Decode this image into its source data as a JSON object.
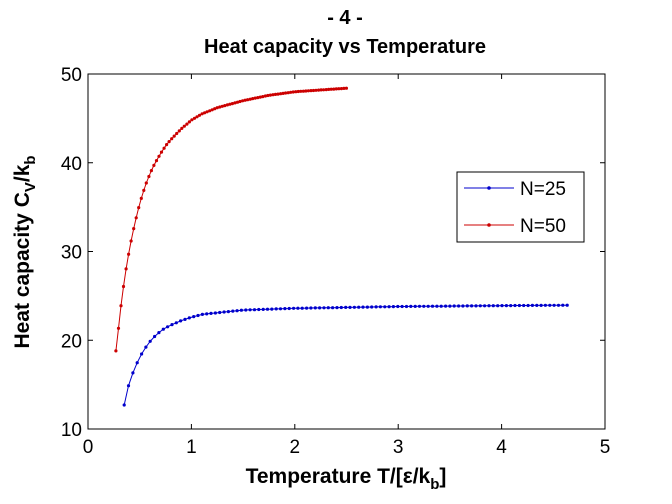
{
  "chart_data": {
    "type": "line",
    "title": "- 4 -",
    "subtitle": "Heat capacity vs Temperature",
    "xlabel": "Temperature T/[ε/k",
    "xlabel_sub": "b",
    "xlabel_end": "]",
    "ylabel": "Heat capacity C",
    "ylabel_sub1": "V",
    "ylabel_mid": "/k",
    "ylabel_sub2": "b",
    "xlim": [
      0,
      5
    ],
    "ylim": [
      10,
      50
    ],
    "x_ticks": [
      "0",
      "1",
      "2",
      "3",
      "4",
      "5"
    ],
    "y_ticks": [
      "10",
      "20",
      "30",
      "40",
      "50"
    ],
    "grid": false,
    "legend_position": "right",
    "series": [
      {
        "name": "N=25",
        "color": "#0000cc",
        "marker": "dot",
        "x_start": 0.35,
        "x_step": 0.042,
        "x_end": 4.64,
        "anchors": [
          [
            0.35,
            12.7
          ],
          [
            0.4,
            15.3
          ],
          [
            0.46,
            17.1
          ],
          [
            0.52,
            18.5
          ],
          [
            0.58,
            19.6
          ],
          [
            0.65,
            20.5
          ],
          [
            0.72,
            21.2
          ],
          [
            0.8,
            21.7
          ],
          [
            0.9,
            22.2
          ],
          [
            1.0,
            22.6
          ],
          [
            1.1,
            22.9
          ],
          [
            1.25,
            23.1
          ],
          [
            1.5,
            23.4
          ],
          [
            2.0,
            23.6
          ],
          [
            2.5,
            23.7
          ],
          [
            3.0,
            23.8
          ],
          [
            3.5,
            23.85
          ],
          [
            4.0,
            23.9
          ],
          [
            4.64,
            23.95
          ]
        ]
      },
      {
        "name": "N=50",
        "color": "#cc0000",
        "marker": "dot",
        "x_start": 0.27,
        "x_step": 0.0245,
        "x_end": 2.5,
        "anchors": [
          [
            0.27,
            18.8
          ],
          [
            0.32,
            24.0
          ],
          [
            0.36,
            27.5
          ],
          [
            0.4,
            30.2
          ],
          [
            0.44,
            32.5
          ],
          [
            0.48,
            34.5
          ],
          [
            0.52,
            36.2
          ],
          [
            0.56,
            37.6
          ],
          [
            0.6,
            38.8
          ],
          [
            0.65,
            40.0
          ],
          [
            0.7,
            41.0
          ],
          [
            0.75,
            41.9
          ],
          [
            0.8,
            42.6
          ],
          [
            0.9,
            43.8
          ],
          [
            1.0,
            44.8
          ],
          [
            1.1,
            45.5
          ],
          [
            1.25,
            46.2
          ],
          [
            1.5,
            47.0
          ],
          [
            1.75,
            47.6
          ],
          [
            2.0,
            48.0
          ],
          [
            2.25,
            48.2
          ],
          [
            2.5,
            48.4
          ]
        ]
      }
    ]
  }
}
